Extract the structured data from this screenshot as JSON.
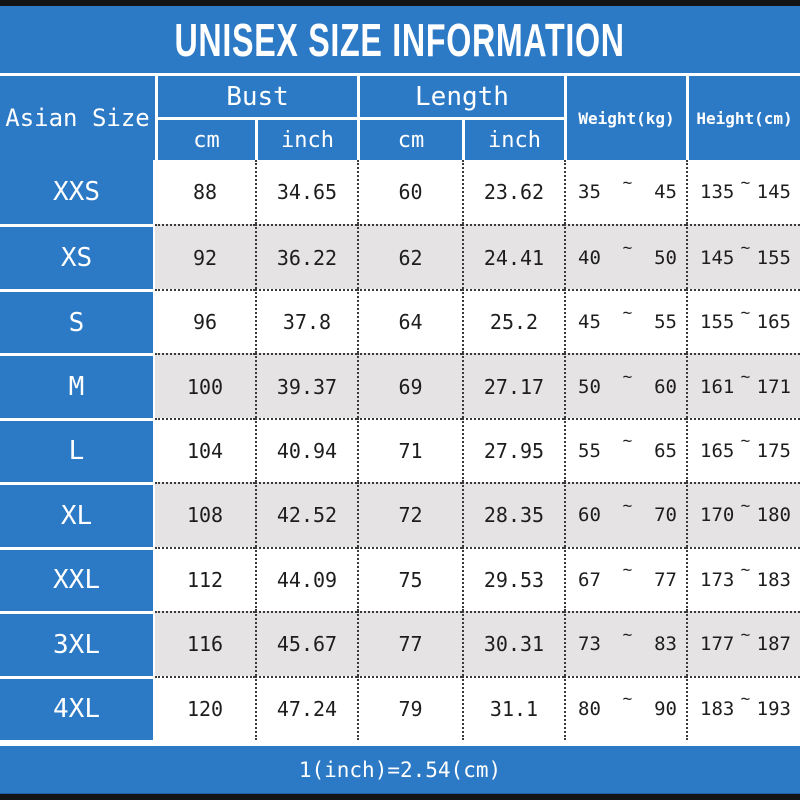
{
  "title": "UNISEX SIZE INFORMATION",
  "footer_note": "1(inch)=2.54(cm)",
  "colors": {
    "accent_blue": "#2c79c5",
    "row_alt_gray": "#e5e3e3",
    "border_strip": "#141414"
  },
  "table": {
    "corner_header": "Asian Size",
    "groups": {
      "bust": "Bust",
      "length": "Length"
    },
    "subheaders": {
      "bust_cm": "cm",
      "bust_inch": "inch",
      "length_cm": "cm",
      "length_inch": "inch"
    },
    "weight_header": "Weight(kg)",
    "height_header": "Height(cm)",
    "range_separator": "~",
    "rows": [
      {
        "size": "XXS",
        "bust_cm": "88",
        "bust_inch": "34.65",
        "length_cm": "60",
        "length_inch": "23.62",
        "weight_min": "35",
        "weight_max": "45",
        "height_min": "135",
        "height_max": "145"
      },
      {
        "size": "XS",
        "bust_cm": "92",
        "bust_inch": "36.22",
        "length_cm": "62",
        "length_inch": "24.41",
        "weight_min": "40",
        "weight_max": "50",
        "height_min": "145",
        "height_max": "155"
      },
      {
        "size": "S",
        "bust_cm": "96",
        "bust_inch": "37.8",
        "length_cm": "64",
        "length_inch": "25.2",
        "weight_min": "45",
        "weight_max": "55",
        "height_min": "155",
        "height_max": "165"
      },
      {
        "size": "M",
        "bust_cm": "100",
        "bust_inch": "39.37",
        "length_cm": "69",
        "length_inch": "27.17",
        "weight_min": "50",
        "weight_max": "60",
        "height_min": "161",
        "height_max": "171"
      },
      {
        "size": "L",
        "bust_cm": "104",
        "bust_inch": "40.94",
        "length_cm": "71",
        "length_inch": "27.95",
        "weight_min": "55",
        "weight_max": "65",
        "height_min": "165",
        "height_max": "175"
      },
      {
        "size": "XL",
        "bust_cm": "108",
        "bust_inch": "42.52",
        "length_cm": "72",
        "length_inch": "28.35",
        "weight_min": "60",
        "weight_max": "70",
        "height_min": "170",
        "height_max": "180"
      },
      {
        "size": "XXL",
        "bust_cm": "112",
        "bust_inch": "44.09",
        "length_cm": "75",
        "length_inch": "29.53",
        "weight_min": "67",
        "weight_max": "77",
        "height_min": "173",
        "height_max": "183"
      },
      {
        "size": "3XL",
        "bust_cm": "116",
        "bust_inch": "45.67",
        "length_cm": "77",
        "length_inch": "30.31",
        "weight_min": "73",
        "weight_max": "83",
        "height_min": "177",
        "height_max": "187"
      },
      {
        "size": "4XL",
        "bust_cm": "120",
        "bust_inch": "47.24",
        "length_cm": "79",
        "length_inch": "31.1",
        "weight_min": "80",
        "weight_max": "90",
        "height_min": "183",
        "height_max": "193"
      }
    ]
  },
  "chart_data": {
    "type": "table",
    "title": "UNISEX SIZE INFORMATION",
    "columns": [
      "Asian Size",
      "Bust cm",
      "Bust inch",
      "Length cm",
      "Length inch",
      "Weight(kg)",
      "Height(cm)"
    ],
    "rows": [
      [
        "XXS",
        88,
        34.65,
        60,
        23.62,
        "35~45",
        "135~145"
      ],
      [
        "XS",
        92,
        36.22,
        62,
        24.41,
        "40~50",
        "145~155"
      ],
      [
        "S",
        96,
        37.8,
        64,
        25.2,
        "45~55",
        "155~165"
      ],
      [
        "M",
        100,
        39.37,
        69,
        27.17,
        "50~60",
        "161~171"
      ],
      [
        "L",
        104,
        40.94,
        71,
        27.95,
        "55~65",
        "165~175"
      ],
      [
        "XL",
        108,
        42.52,
        72,
        28.35,
        "60~70",
        "170~180"
      ],
      [
        "XXL",
        112,
        44.09,
        75,
        29.53,
        "67~77",
        "173~183"
      ],
      [
        "3XL",
        116,
        45.67,
        77,
        30.31,
        "73~83",
        "177~187"
      ],
      [
        "4XL",
        120,
        47.24,
        79,
        31.1,
        "80~90",
        "183~193"
      ]
    ],
    "note": "1(inch)=2.54(cm)"
  }
}
